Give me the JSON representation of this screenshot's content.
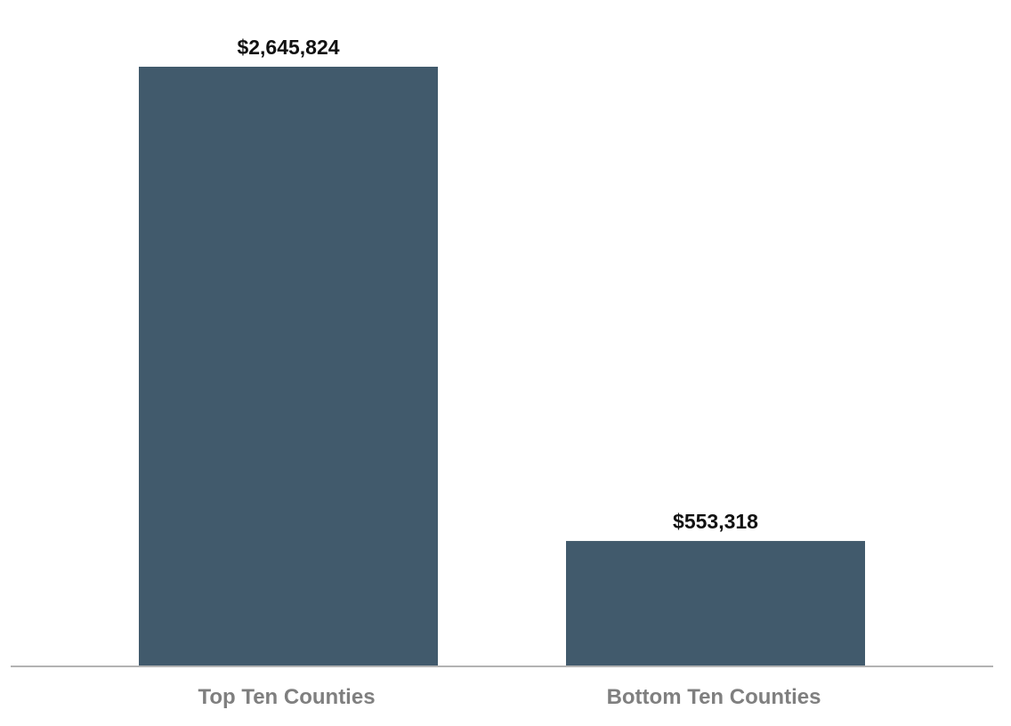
{
  "colors": {
    "bar": "#415a6c",
    "axis": "#b3b3b3",
    "category_text": "#7f7f7f",
    "value_text": "#111111",
    "background": "#ffffff"
  },
  "chart_data": {
    "type": "bar",
    "categories": [
      "Top Ten Counties",
      "Bottom Ten Counties"
    ],
    "values": [
      2645824,
      553318
    ],
    "value_labels": [
      "$2,645,824",
      "$553,318"
    ],
    "title": "",
    "xlabel": "",
    "ylabel": "",
    "ylim": [
      0,
      2645824
    ],
    "grid": false,
    "legend": "none"
  }
}
